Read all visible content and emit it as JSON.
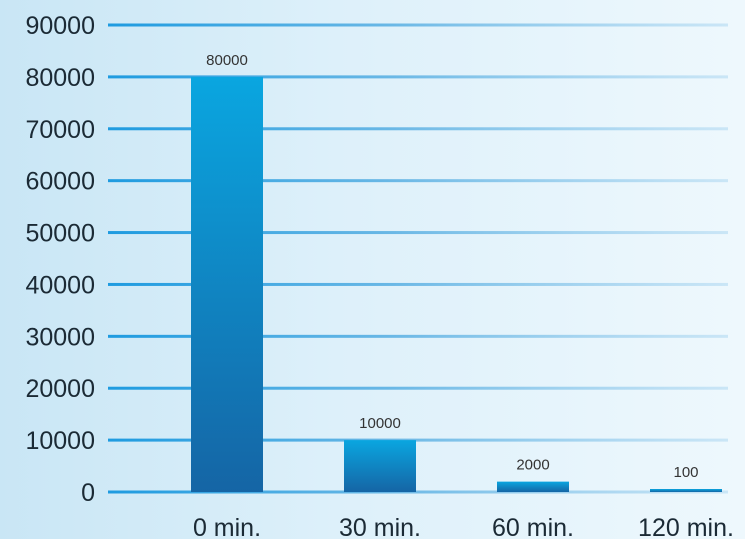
{
  "chart_data": {
    "type": "bar",
    "title": "",
    "xlabel": "",
    "ylabel": "",
    "categories": [
      "0 min.",
      "30 min.",
      "60 min.",
      "120 min."
    ],
    "values": [
      80000,
      10000,
      2000,
      100
    ],
    "data_labels": [
      "80000",
      "10000",
      "2000",
      "100"
    ],
    "ylim": [
      0,
      90000
    ],
    "yticks": [
      0,
      10000,
      20000,
      30000,
      40000,
      50000,
      60000,
      70000,
      80000,
      90000
    ],
    "ytick_labels": [
      "0",
      "10000",
      "20000",
      "30000",
      "40000",
      "50000",
      "60000",
      "70000",
      "80000",
      "90000"
    ],
    "grid": true,
    "legend": "none",
    "colors": {
      "bar_top": "#0aa6e0",
      "bar_bottom": "#1565a5",
      "gridline": "#62b4e4",
      "gridline_accent": "#1e9be0",
      "background_left": "#c9e6f5",
      "background_right": "#eef8fd"
    }
  }
}
